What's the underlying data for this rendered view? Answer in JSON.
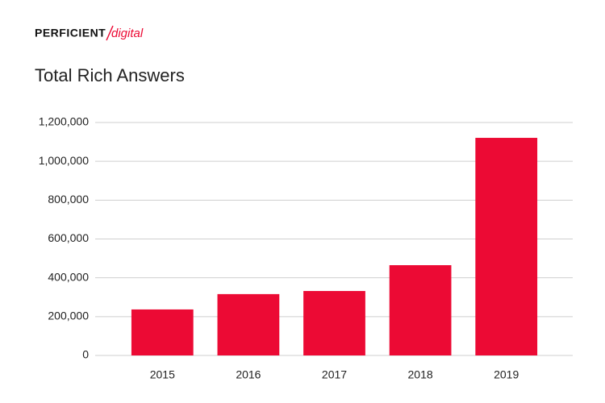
{
  "logo": {
    "brand": "PERFICIENT",
    "sub": "digital"
  },
  "chart_data": {
    "type": "bar",
    "title": "Total Rich Answers",
    "categories": [
      "2015",
      "2016",
      "2017",
      "2018",
      "2019"
    ],
    "values": [
      237000,
      316000,
      332000,
      465000,
      1121000
    ],
    "color": "#ec0a34",
    "ylim": [
      0,
      1200000
    ],
    "yticks": [
      0,
      {
        "value": 200000,
        "label": "200,000"
      },
      {
        "value": 400000,
        "label": "400,000"
      },
      {
        "value": 600000,
        "label": "600,000"
      },
      {
        "value": 800000,
        "label": "800,000"
      },
      {
        "value": 1000000,
        "label": "1,000,000"
      },
      {
        "value": 1200000,
        "label": "1,200,000"
      }
    ],
    "grid": true
  }
}
